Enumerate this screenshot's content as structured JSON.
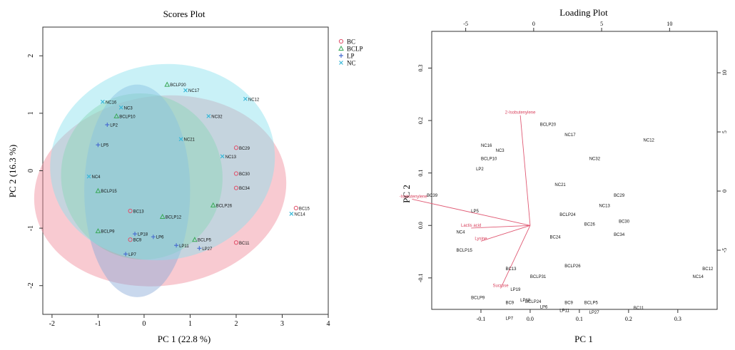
{
  "chart_data": [
    {
      "type": "scatter",
      "title": "Scores Plot",
      "xlabel": "PC 1 (22.8 %)",
      "ylabel": "PC 2 (16.3 %)",
      "xlim": [
        -2.2,
        4.0
      ],
      "ylim": [
        -2.5,
        2.5
      ],
      "xticks": [
        "-2",
        "-1",
        "0",
        "1",
        "2",
        "3",
        "4"
      ],
      "yticks": [
        "-2",
        "-1",
        "0",
        "1",
        "2"
      ],
      "grid": false,
      "legend_position": "top-right",
      "legend": [
        {
          "name": "BC",
          "marker": "circle",
          "color": "#e0506a"
        },
        {
          "name": "BCLP",
          "marker": "triangle",
          "color": "#3aa858"
        },
        {
          "name": "LP",
          "marker": "plus",
          "color": "#4a6fd0"
        },
        {
          "name": "NC",
          "marker": "cross",
          "color": "#3ab8d8"
        }
      ],
      "ellipses": [
        {
          "group": "BC",
          "color": "#f08a9a",
          "cx": 0.35,
          "cy": -0.35,
          "rx": 2.75,
          "ry": 1.65,
          "angle": -8
        },
        {
          "group": "BCLP",
          "color": "#8ad08a",
          "cx": -0.05,
          "cy": -0.1,
          "rx": 1.75,
          "ry": 1.45,
          "angle": -15
        },
        {
          "group": "LP",
          "color": "#88a8d8",
          "cx": -0.15,
          "cy": -0.35,
          "rx": 1.15,
          "ry": 1.85,
          "angle": 0
        },
        {
          "group": "NC",
          "color": "#88e0ee",
          "cx": 0.4,
          "cy": 0.15,
          "rx": 2.45,
          "ry": 1.7,
          "angle": -10
        }
      ],
      "points": [
        {
          "label": "BCLP20",
          "g": "BCLP",
          "x": 0.5,
          "y": 1.5
        },
        {
          "label": "NC17",
          "g": "NC",
          "x": 0.9,
          "y": 1.4
        },
        {
          "label": "NC12",
          "g": "NC",
          "x": 2.2,
          "y": 1.25
        },
        {
          "label": "NC16",
          "g": "NC",
          "x": -0.9,
          "y": 1.2
        },
        {
          "label": "NC3",
          "g": "NC",
          "x": -0.5,
          "y": 1.1
        },
        {
          "label": "BCLP10",
          "g": "BCLP",
          "x": -0.6,
          "y": 0.95
        },
        {
          "label": "NC32",
          "g": "NC",
          "x": 1.4,
          "y": 0.95
        },
        {
          "label": "LP2",
          "g": "LP",
          "x": -0.8,
          "y": 0.8
        },
        {
          "label": "NC21",
          "g": "NC",
          "x": 0.8,
          "y": 0.55
        },
        {
          "label": "BC29",
          "g": "BC",
          "x": 2.0,
          "y": 0.4
        },
        {
          "label": "NC13",
          "g": "NC",
          "x": 1.7,
          "y": 0.25
        },
        {
          "label": "LP5",
          "g": "LP",
          "x": -1.0,
          "y": 0.45
        },
        {
          "label": "NC4",
          "g": "NC",
          "x": -1.2,
          "y": -0.1
        },
        {
          "label": "BCLP15",
          "g": "BCLP",
          "x": -1.0,
          "y": -0.35
        },
        {
          "label": "BC30",
          "g": "BC",
          "x": 2.0,
          "y": -0.05
        },
        {
          "label": "BC34",
          "g": "BC",
          "x": 2.0,
          "y": -0.3
        },
        {
          "label": "BCLP26",
          "g": "BCLP",
          "x": 1.5,
          "y": -0.6
        },
        {
          "label": "BC13",
          "g": "BC",
          "x": -0.3,
          "y": -0.7
        },
        {
          "label": "BCLP12",
          "g": "BCLP",
          "x": 0.4,
          "y": -0.8
        },
        {
          "label": "BC15",
          "g": "BC",
          "x": 3.3,
          "y": -0.65
        },
        {
          "label": "NC14",
          "g": "NC",
          "x": 3.2,
          "y": -0.75
        },
        {
          "label": "LP18",
          "g": "LP",
          "x": -0.2,
          "y": -1.1
        },
        {
          "label": "BCLP9",
          "g": "BCLP",
          "x": -1.0,
          "y": -1.05
        },
        {
          "label": "BC9",
          "g": "BC",
          "x": -0.3,
          "y": -1.2
        },
        {
          "label": "LP6",
          "g": "LP",
          "x": 0.2,
          "y": -1.15
        },
        {
          "label": "BCLP5",
          "g": "BCLP",
          "x": 1.1,
          "y": -1.2
        },
        {
          "label": "LP11",
          "g": "LP",
          "x": 0.7,
          "y": -1.3
        },
        {
          "label": "LP27",
          "g": "LP",
          "x": 1.2,
          "y": -1.35
        },
        {
          "label": "BC11",
          "g": "BC",
          "x": 2.0,
          "y": -1.25
        },
        {
          "label": "LP7",
          "g": "LP",
          "x": -0.4,
          "y": -1.45
        }
      ]
    },
    {
      "type": "scatter",
      "title": "Loading Plot",
      "xlabel": "PC 1",
      "ylabel": "PC 2",
      "xlim": [
        -0.2,
        0.38
      ],
      "ylim": [
        -0.16,
        0.37
      ],
      "xticks": [
        "-0.1",
        "0.0",
        "0.1",
        "0.2",
        "0.3"
      ],
      "yticks": [
        "-0.1",
        "0.0",
        "0.1",
        "0.2",
        "0.3"
      ],
      "top_ticks": [
        "-5",
        "0",
        "5",
        "10"
      ],
      "right_ticks": [
        "-5",
        "0",
        "5",
        "10"
      ],
      "grid": false,
      "points": [
        {
          "label": "BCLP20",
          "x": 0.02,
          "y": 0.19
        },
        {
          "label": "NC17",
          "x": 0.07,
          "y": 0.17
        },
        {
          "label": "NC12",
          "x": 0.23,
          "y": 0.16
        },
        {
          "label": "NC16",
          "x": -0.1,
          "y": 0.15
        },
        {
          "label": "NC3",
          "x": -0.07,
          "y": 0.14
        },
        {
          "label": "BCLP10",
          "x": -0.1,
          "y": 0.125
        },
        {
          "label": "NC32",
          "x": 0.12,
          "y": 0.125
        },
        {
          "label": "LP2",
          "x": -0.11,
          "y": 0.105
        },
        {
          "label": "NC21",
          "x": 0.05,
          "y": 0.075
        },
        {
          "label": "BC29",
          "x": 0.17,
          "y": 0.055
        },
        {
          "label": "NC13",
          "x": 0.14,
          "y": 0.035
        },
        {
          "label": "BC39",
          "x": -0.21,
          "y": 0.055
        },
        {
          "label": "LP5",
          "x": -0.12,
          "y": 0.025
        },
        {
          "label": "BCLP24",
          "x": 0.06,
          "y": 0.018
        },
        {
          "label": "BC26",
          "x": 0.11,
          "y": 0.0
        },
        {
          "label": "BC30",
          "x": 0.18,
          "y": 0.005
        },
        {
          "label": "NC4",
          "x": -0.15,
          "y": -0.015
        },
        {
          "label": "BC34",
          "x": 0.17,
          "y": -0.02
        },
        {
          "label": "BC24",
          "x": 0.04,
          "y": -0.025
        },
        {
          "label": "BCLP15",
          "x": -0.15,
          "y": -0.05
        },
        {
          "label": "BC13",
          "x": -0.05,
          "y": -0.085
        },
        {
          "label": "BCLP26",
          "x": 0.07,
          "y": -0.08
        },
        {
          "label": "BCLP31",
          "x": 0.0,
          "y": -0.1
        },
        {
          "label": "BC12",
          "x": 0.35,
          "y": -0.085
        },
        {
          "label": "NC14",
          "x": 0.33,
          "y": -0.1
        },
        {
          "label": "LP19",
          "x": -0.04,
          "y": -0.125
        },
        {
          "label": "BCLP9",
          "x": -0.12,
          "y": -0.14
        },
        {
          "label": "BC9",
          "x": -0.05,
          "y": -0.15
        },
        {
          "label": "LP18",
          "x": -0.02,
          "y": -0.145
        },
        {
          "label": "BCLP24",
          "x": -0.01,
          "y": -0.148
        },
        {
          "label": "BC9",
          "x": 0.07,
          "y": -0.15
        },
        {
          "label": "BCLP5",
          "x": 0.11,
          "y": -0.15
        },
        {
          "label": "LP6",
          "x": 0.02,
          "y": -0.158
        },
        {
          "label": "LP11",
          "x": 0.06,
          "y": -0.165
        },
        {
          "label": "LP27",
          "x": 0.12,
          "y": -0.168
        },
        {
          "label": "BC11",
          "x": 0.21,
          "y": -0.16
        },
        {
          "label": "LP7",
          "x": -0.05,
          "y": -0.18
        }
      ],
      "loadings": [
        {
          "label": "2-Isobutenylene",
          "x": -0.02,
          "y": 0.21
        },
        {
          "label": "2-Isobutenylene",
          "x": -0.24,
          "y": 0.05
        },
        {
          "label": "Lactis acid",
          "x": -0.12,
          "y": -0.005
        },
        {
          "label": "Lysine",
          "x": -0.1,
          "y": -0.03
        },
        {
          "label": "Sucrose",
          "x": -0.06,
          "y": -0.12
        }
      ]
    }
  ]
}
